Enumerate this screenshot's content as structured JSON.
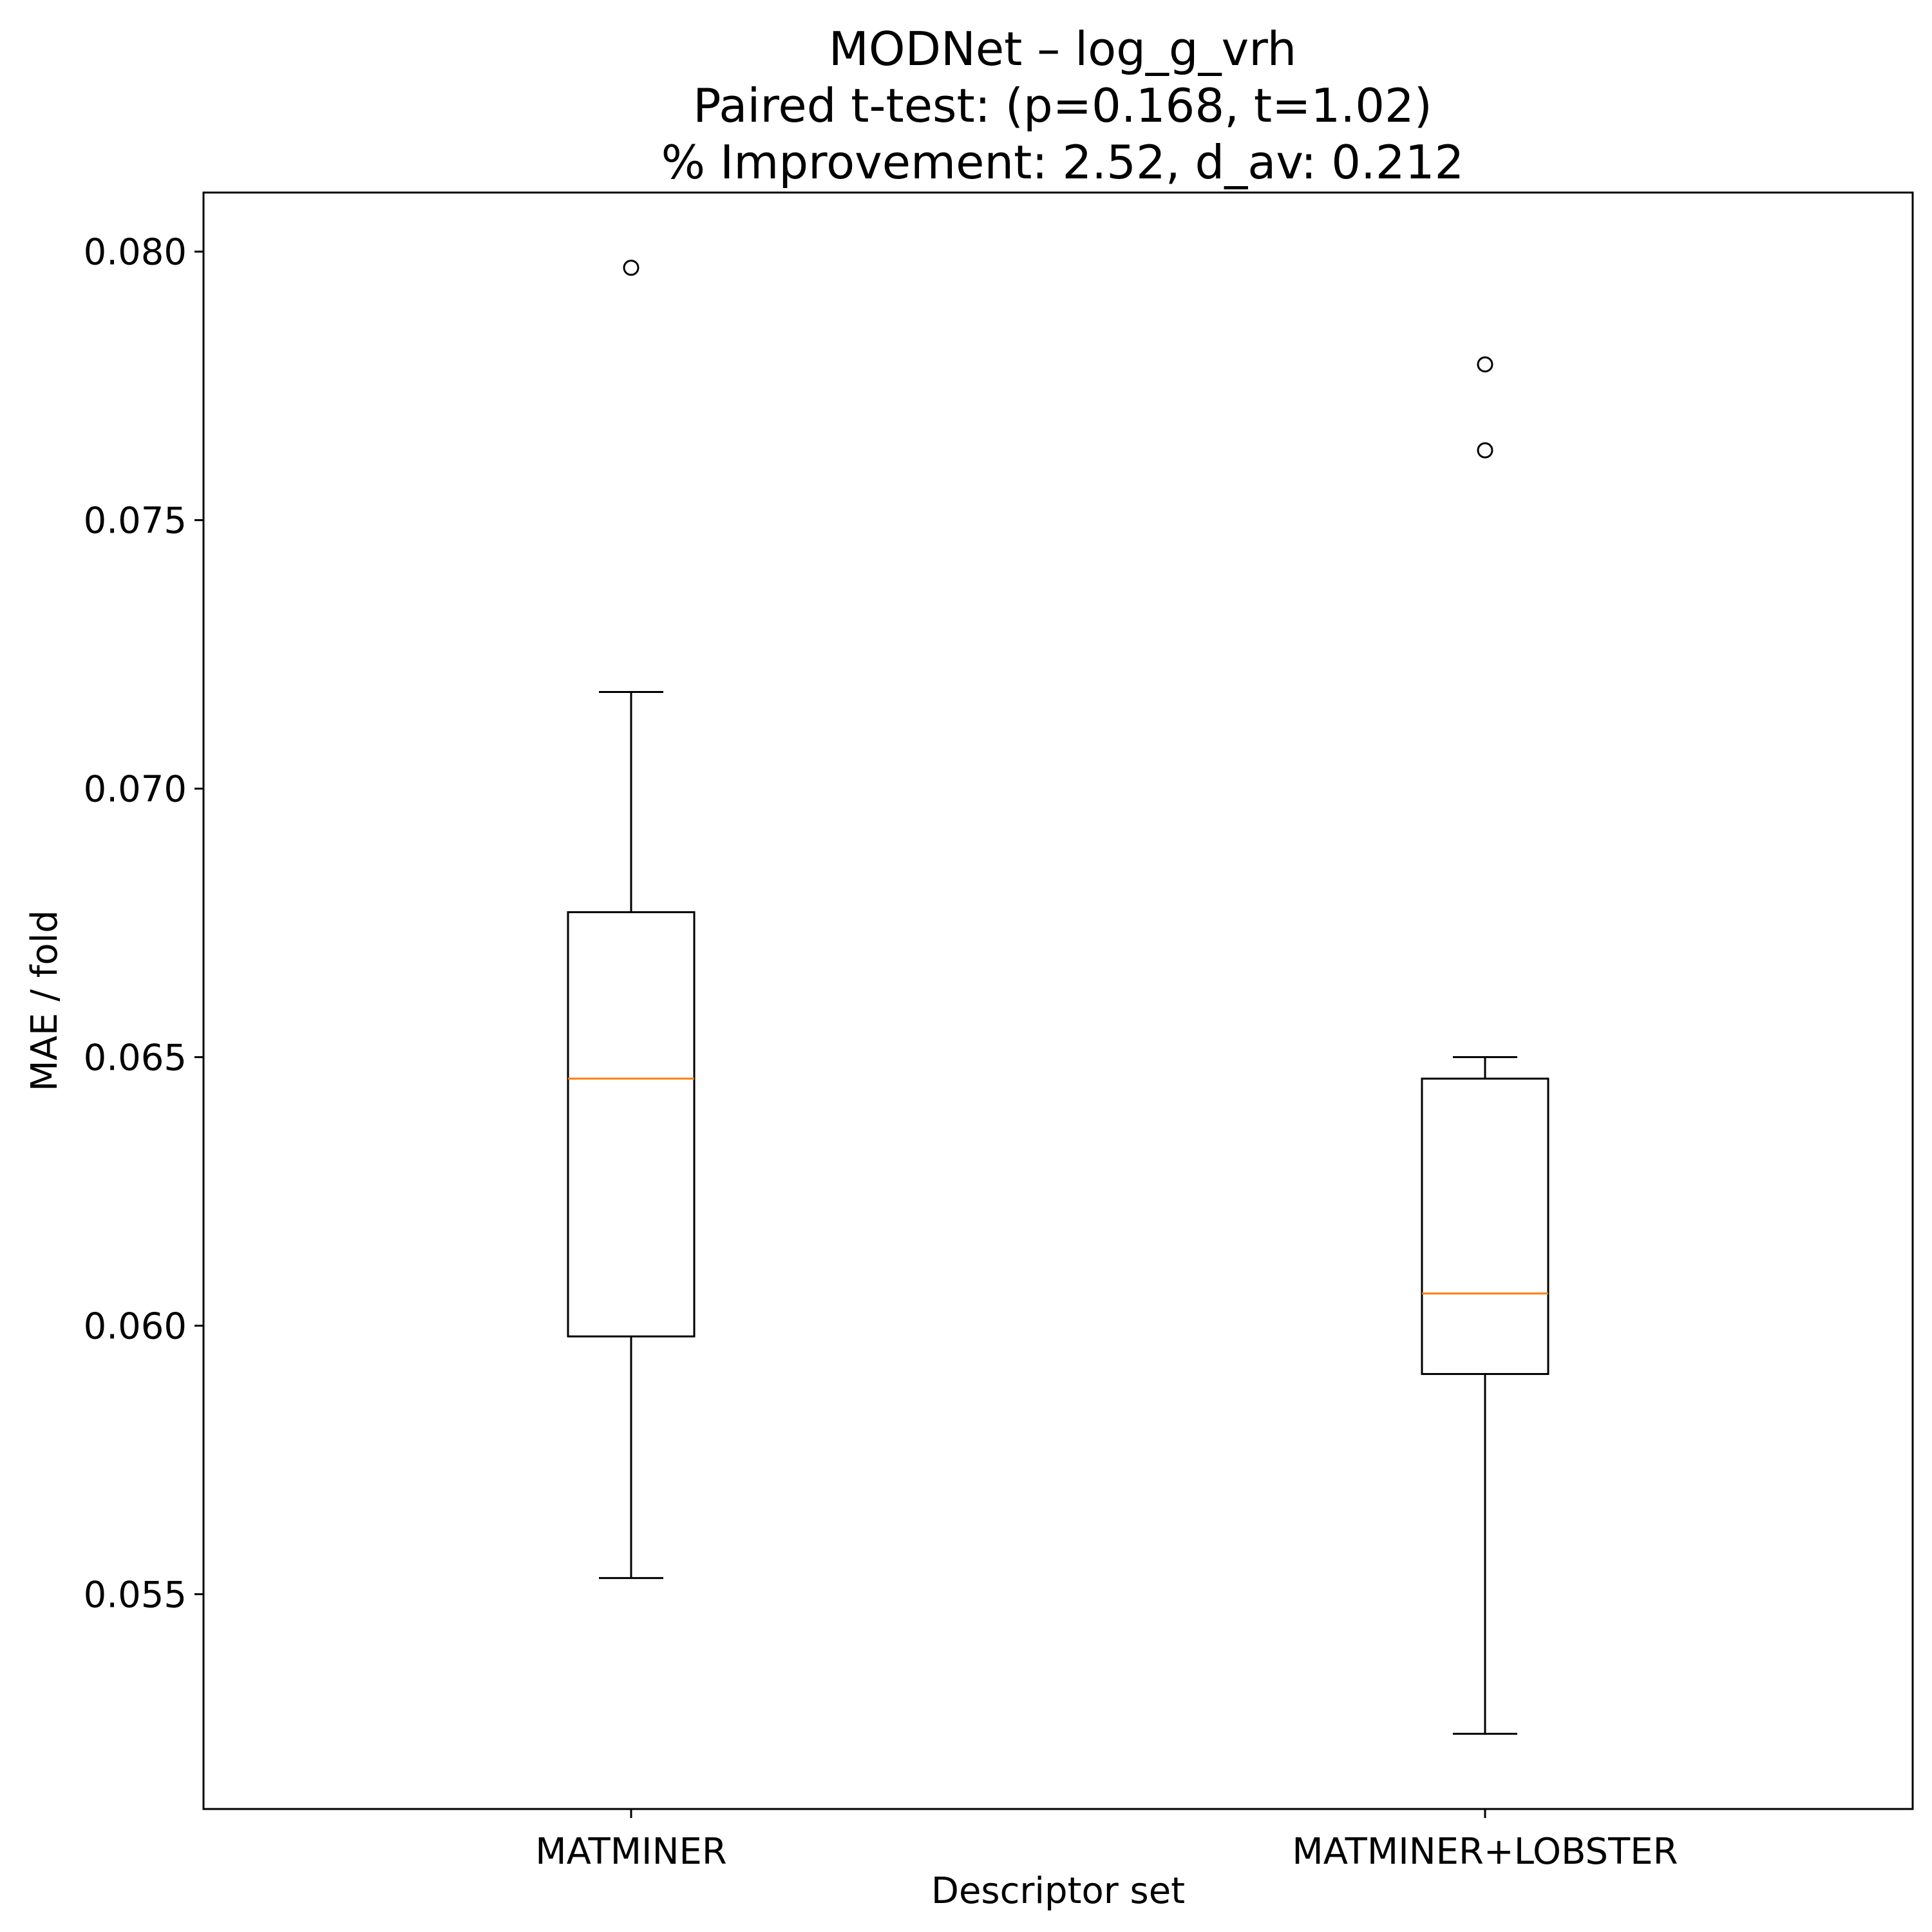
{
  "chart_data": {
    "type": "box",
    "title": "MODNet – log_g_vrh",
    "subtitle_lines": [
      "Paired t-test: (p=0.168, t=1.02)",
      "% Improvement: 2.52, d_av: 0.212"
    ],
    "xlabel": "Descriptor set",
    "ylabel": "MAE / fold",
    "categories": [
      "MATMINER",
      "MATMINER+LOBSTER"
    ],
    "ylim": [
      0.051,
      0.0811
    ],
    "yticks": [
      0.055,
      0.06,
      0.065,
      0.07,
      0.075,
      0.08
    ],
    "ytick_labels": [
      "0.055",
      "0.060",
      "0.065",
      "0.070",
      "0.075",
      "0.080"
    ],
    "grid": false,
    "series": [
      {
        "name": "MATMINER",
        "whisker_low": 0.0553,
        "q1": 0.0598,
        "median": 0.0646,
        "q3": 0.0677,
        "whisker_high": 0.0718,
        "outliers": [
          0.0797
        ]
      },
      {
        "name": "MATMINER+LOBSTER",
        "whisker_low": 0.0524,
        "q1": 0.0591,
        "median": 0.0606,
        "q3": 0.0646,
        "whisker_high": 0.065,
        "outliers": [
          0.0779,
          0.0763
        ]
      }
    ],
    "colors": {
      "box": "#000000",
      "median": "#ff7f0e",
      "outlier": "#000000"
    }
  }
}
